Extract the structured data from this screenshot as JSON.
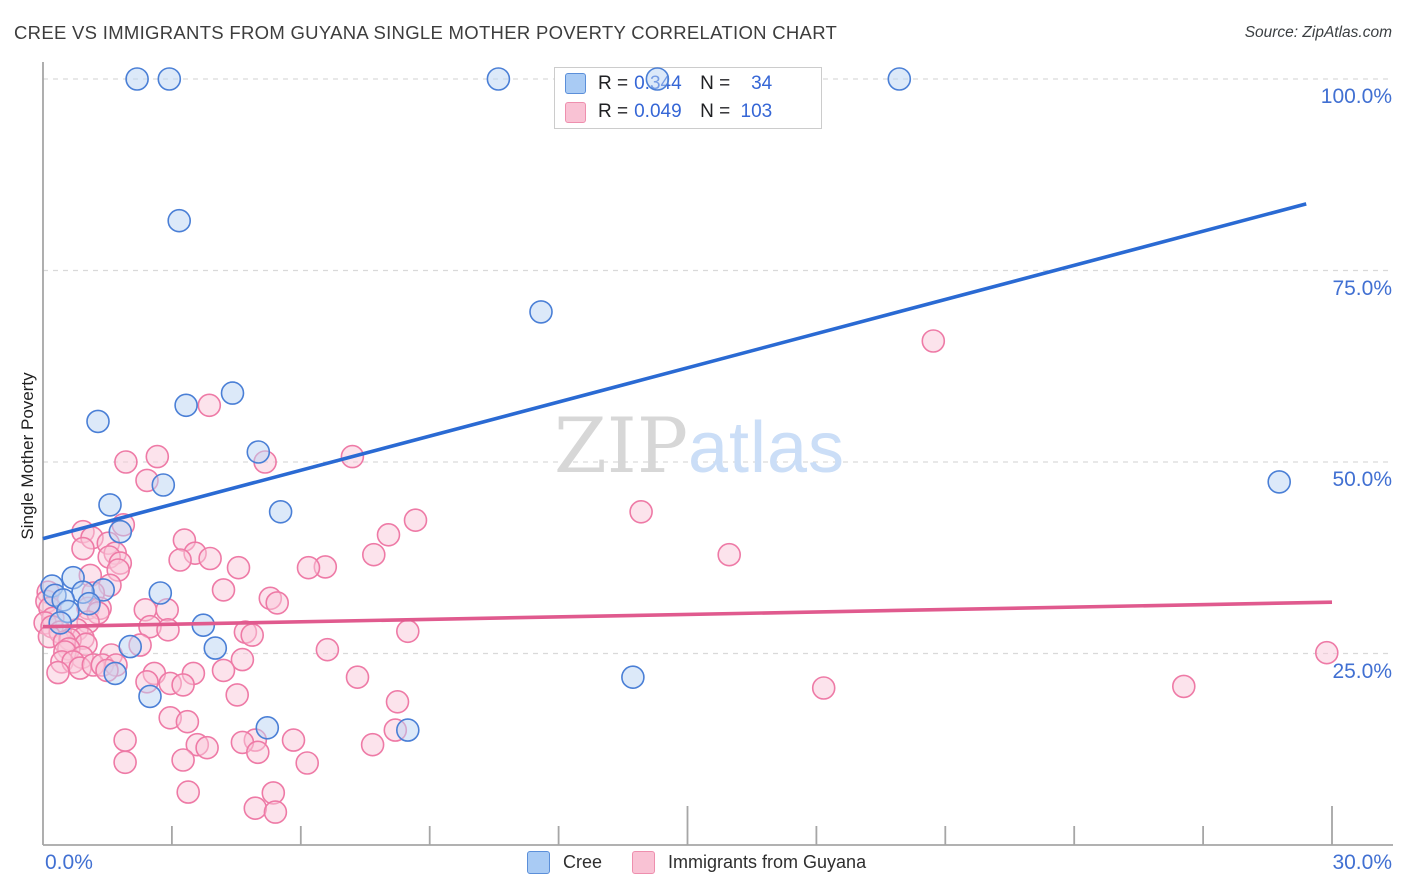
{
  "header": {
    "title": "CREE VS IMMIGRANTS FROM GUYANA SINGLE MOTHER POVERTY CORRELATION CHART",
    "source": "Source: ZipAtlas.com"
  },
  "watermark": {
    "part1": "ZIP",
    "part2": "atlas"
  },
  "stats_legend": {
    "r_label": "R =",
    "n_label": "N ="
  },
  "axes": {
    "y_label": "Single Mother Poverty",
    "y_tick_labels": [
      "100.0%",
      "75.0%",
      "50.0%",
      "25.0%"
    ],
    "x_tick_label_left": "0.0%",
    "x_tick_label_right": "30.0%"
  },
  "chart_data": {
    "type": "scatter",
    "title": "CREE VS IMMIGRANTS FROM GUYANA SINGLE MOTHER POVERTY CORRELATION CHART",
    "xlabel": "",
    "ylabel": "Single Mother Poverty",
    "x_axis": {
      "min": 0,
      "max": 30,
      "unit": "%",
      "minor_tick_step": 3,
      "major_ticks": [
        15,
        30
      ]
    },
    "y_axis": {
      "min": 0,
      "max": 100,
      "unit": "%",
      "gridlines": [
        100,
        75,
        50,
        25
      ],
      "grid_style": "dashed"
    },
    "colors": {
      "grid": "#d9d9d9",
      "axis": "#a6a6a6",
      "tick_label": "#4170d2"
    },
    "series": [
      {
        "name": "Cree",
        "r": "0.344",
        "n": "34",
        "point_fill": "#b9d3f4",
        "point_stroke": "#4a7fd6",
        "line_color": "#2a6ad3",
        "points": [
          [
            2.19,
            100
          ],
          [
            2.94,
            100
          ],
          [
            10.6,
            100
          ],
          [
            14.3,
            100
          ],
          [
            19.93,
            100
          ],
          [
            3.17,
            81.5
          ],
          [
            11.59,
            69.6
          ],
          [
            4.41,
            59.0
          ],
          [
            3.33,
            57.4
          ],
          [
            1.28,
            55.3
          ],
          [
            5.01,
            51.3
          ],
          [
            2.8,
            47.0
          ],
          [
            1.56,
            44.4
          ],
          [
            5.53,
            43.5
          ],
          [
            1.8,
            40.9
          ],
          [
            28.77,
            47.4
          ],
          [
            0.7,
            34.9
          ],
          [
            0.21,
            33.8
          ],
          [
            1.4,
            33.3
          ],
          [
            0.93,
            33.0
          ],
          [
            2.73,
            32.9
          ],
          [
            0.28,
            32.6
          ],
          [
            0.47,
            32.0
          ],
          [
            1.07,
            31.5
          ],
          [
            0.58,
            30.5
          ],
          [
            0.4,
            29.0
          ],
          [
            3.73,
            28.7
          ],
          [
            2.03,
            25.9
          ],
          [
            4.01,
            25.7
          ],
          [
            1.68,
            22.4
          ],
          [
            13.73,
            21.9
          ],
          [
            2.49,
            19.4
          ],
          [
            5.22,
            15.3
          ],
          [
            8.49,
            15.0
          ]
        ]
      },
      {
        "name": "Immigrants from Guyana",
        "r": "0.049",
        "n": "103",
        "point_fill": "#f9c7d9",
        "point_stroke": "#ee7aa6",
        "line_color": "#e05a8e",
        "points": [
          [
            20.72,
            65.8
          ],
          [
            3.87,
            57.4
          ],
          [
            2.66,
            50.7
          ],
          [
            7.2,
            50.7
          ],
          [
            1.93,
            50.0
          ],
          [
            5.17,
            50.0
          ],
          [
            2.42,
            47.6
          ],
          [
            13.92,
            43.5
          ],
          [
            8.67,
            42.4
          ],
          [
            1.87,
            41.8
          ],
          [
            0.93,
            40.9
          ],
          [
            8.04,
            40.5
          ],
          [
            1.14,
            40.1
          ],
          [
            3.29,
            39.8
          ],
          [
            1.52,
            39.4
          ],
          [
            0.93,
            38.7
          ],
          [
            1.68,
            38.1
          ],
          [
            3.54,
            38.1
          ],
          [
            7.7,
            37.9
          ],
          [
            15.97,
            37.9
          ],
          [
            1.54,
            37.6
          ],
          [
            3.89,
            37.4
          ],
          [
            3.19,
            37.2
          ],
          [
            1.8,
            36.8
          ],
          [
            6.57,
            36.3
          ],
          [
            6.18,
            36.2
          ],
          [
            4.55,
            36.2
          ],
          [
            1.75,
            35.9
          ],
          [
            1.1,
            35.2
          ],
          [
            1.56,
            33.9
          ],
          [
            4.2,
            33.3
          ],
          [
            0.12,
            33.0
          ],
          [
            1.17,
            32.9
          ],
          [
            5.29,
            32.2
          ],
          [
            0.09,
            31.8
          ],
          [
            5.45,
            31.6
          ],
          [
            0.16,
            30.9
          ],
          [
            1.05,
            30.9
          ],
          [
            1.33,
            30.9
          ],
          [
            2.38,
            30.7
          ],
          [
            2.89,
            30.7
          ],
          [
            1.28,
            30.3
          ],
          [
            0.23,
            29.6
          ],
          [
            1.05,
            29.1
          ],
          [
            0.05,
            29.0
          ],
          [
            0.21,
            28.5
          ],
          [
            2.49,
            28.5
          ],
          [
            0.79,
            28.1
          ],
          [
            2.91,
            28.1
          ],
          [
            8.49,
            27.9
          ],
          [
            0.4,
            27.8
          ],
          [
            4.71,
            27.8
          ],
          [
            4.87,
            27.4
          ],
          [
            0.15,
            27.2
          ],
          [
            0.93,
            27.0
          ],
          [
            0.63,
            26.8
          ],
          [
            0.5,
            26.5
          ],
          [
            1.0,
            26.2
          ],
          [
            2.26,
            26.1
          ],
          [
            0.6,
            25.6
          ],
          [
            6.62,
            25.5
          ],
          [
            0.51,
            25.2
          ],
          [
            29.88,
            25.1
          ],
          [
            1.59,
            24.8
          ],
          [
            0.91,
            24.5
          ],
          [
            4.64,
            24.2
          ],
          [
            0.44,
            23.9
          ],
          [
            0.7,
            23.9
          ],
          [
            0.86,
            23.1
          ],
          [
            1.17,
            23.5
          ],
          [
            1.38,
            23.5
          ],
          [
            1.7,
            23.5
          ],
          [
            1.49,
            22.8
          ],
          [
            4.2,
            22.8
          ],
          [
            2.59,
            22.4
          ],
          [
            3.5,
            22.4
          ],
          [
            0.35,
            22.5
          ],
          [
            7.32,
            21.9
          ],
          [
            2.42,
            21.3
          ],
          [
            2.96,
            21.1
          ],
          [
            3.26,
            20.9
          ],
          [
            26.55,
            20.7
          ],
          [
            18.17,
            20.5
          ],
          [
            4.52,
            19.6
          ],
          [
            8.25,
            18.7
          ],
          [
            2.96,
            16.6
          ],
          [
            3.36,
            16.1
          ],
          [
            8.2,
            15.0
          ],
          [
            4.94,
            13.7
          ],
          [
            1.91,
            13.7
          ],
          [
            5.83,
            13.7
          ],
          [
            4.64,
            13.4
          ],
          [
            7.67,
            13.1
          ],
          [
            3.59,
            13.1
          ],
          [
            3.82,
            12.7
          ],
          [
            5.0,
            12.1
          ],
          [
            3.26,
            11.1
          ],
          [
            1.91,
            10.8
          ],
          [
            6.15,
            10.7
          ],
          [
            3.38,
            6.9
          ],
          [
            5.36,
            6.8
          ],
          [
            4.94,
            4.8
          ],
          [
            5.41,
            4.3
          ]
        ]
      }
    ],
    "trend_lines": [
      {
        "series": "Cree",
        "x_start": 0,
        "y_start": 40.0,
        "x_end": 29.4,
        "y_end": 83.7
      },
      {
        "series": "Immigrants from Guyana",
        "x_start": 0,
        "y_start": 28.5,
        "x_end": 30,
        "y_end": 31.7
      }
    ],
    "legend_position": "bottom-center"
  }
}
